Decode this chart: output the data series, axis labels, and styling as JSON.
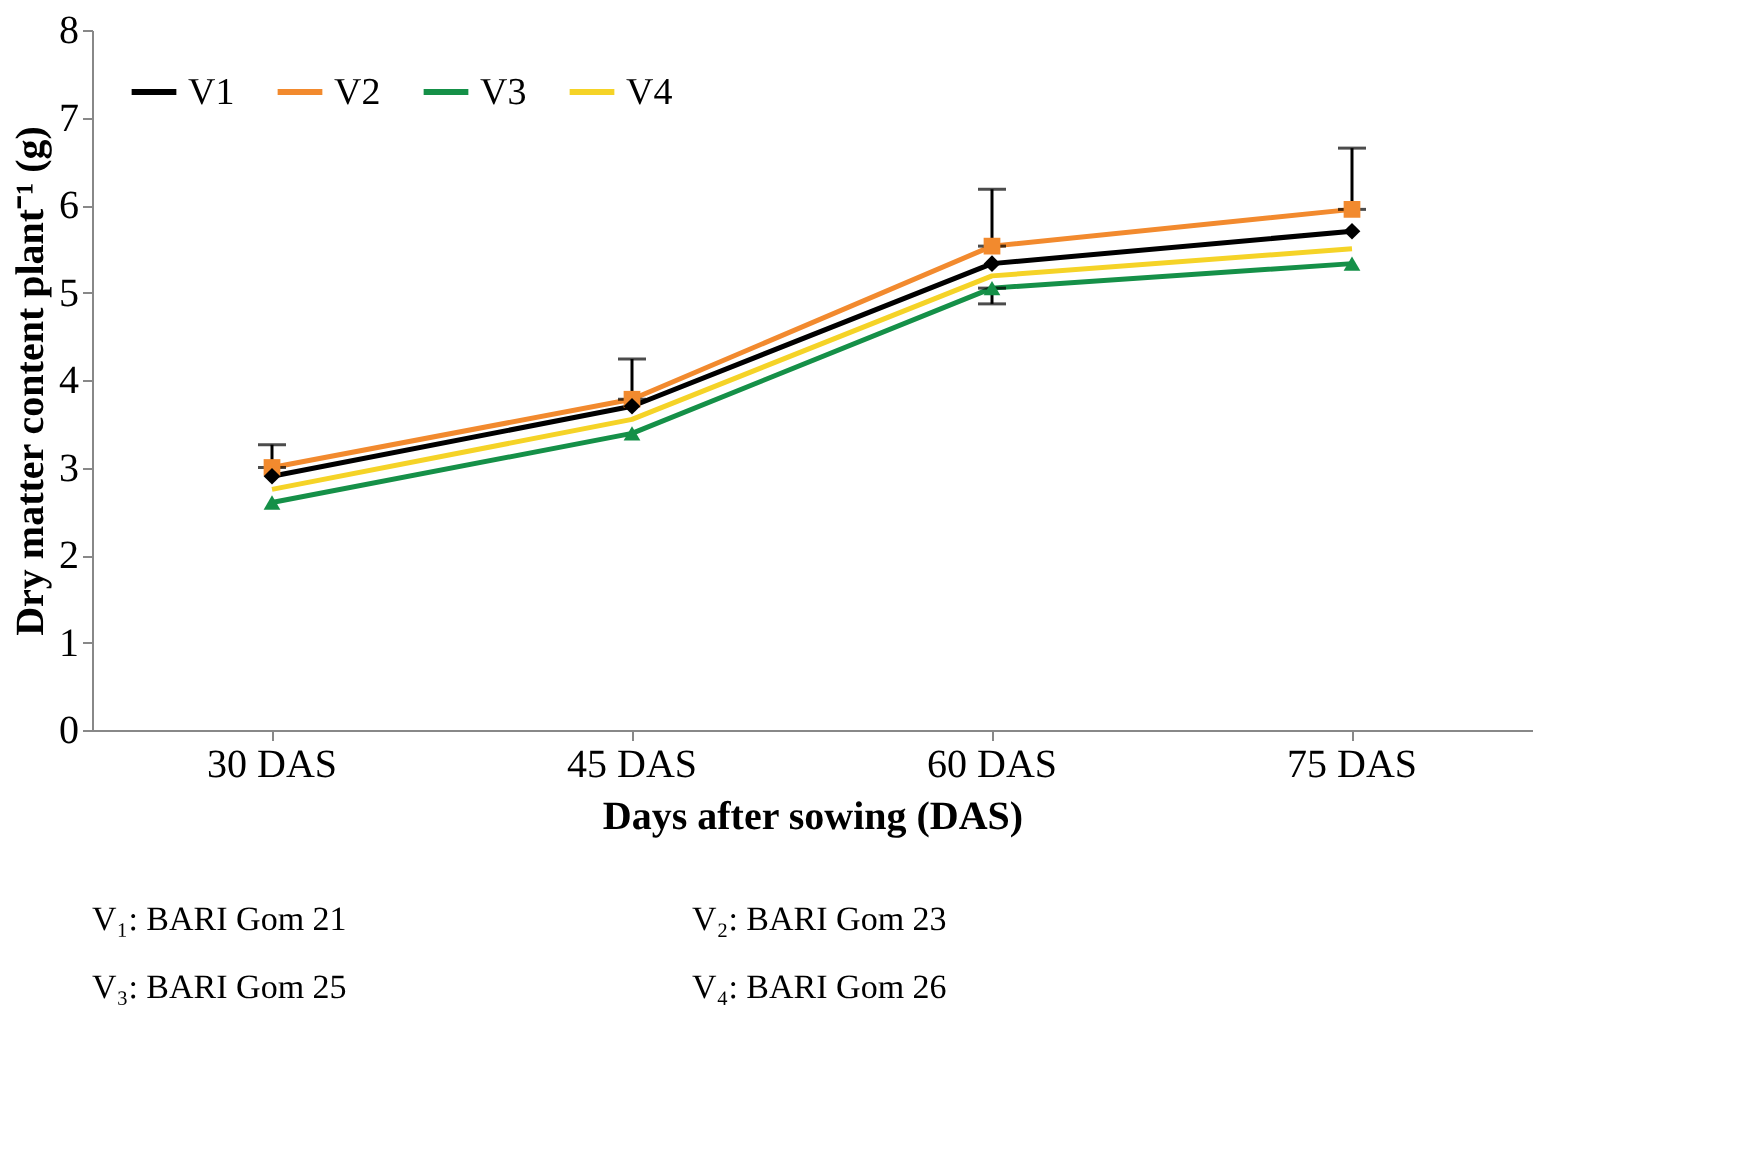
{
  "chart_data": {
    "type": "line",
    "xlabel": "Days after  sowing (DAS)",
    "ylabel": "Dry matter content plant⁻¹ (g)",
    "categories": [
      "30 DAS",
      "45 DAS",
      "60 DAS",
      "75 DAS"
    ],
    "series": [
      {
        "name": "V1",
        "color": "#000000",
        "marker": "diamond",
        "values": [
          2.9,
          3.7,
          5.33,
          5.7
        ]
      },
      {
        "name": "V2",
        "color": "#f28a2e",
        "marker": "square",
        "values": [
          3.0,
          3.78,
          5.53,
          5.95
        ],
        "errors": [
          [
            3.0,
            3.26
          ],
          [
            3.78,
            4.24
          ],
          [
            5.53,
            6.18
          ],
          [
            5.95,
            6.65
          ]
        ]
      },
      {
        "name": "V3",
        "color": "#159048",
        "marker": "triangle",
        "values": [
          2.6,
          3.39,
          5.05,
          5.33
        ],
        "errors": [
          null,
          null,
          [
            4.87,
            5.05
          ],
          null
        ]
      },
      {
        "name": "V4",
        "color": "#f5d327",
        "marker": "none",
        "values": [
          2.75,
          3.55,
          5.19,
          5.5
        ]
      }
    ],
    "ylim": [
      0,
      8
    ],
    "yticks": [
      0,
      1,
      2,
      3,
      4,
      5,
      6,
      7,
      8
    ],
    "grid": false,
    "legend": "top left",
    "annotations": [
      "V₁: BARI Gom 21",
      "V₂: BARI Gom 23",
      "V₃: BARI Gom 25",
      "V₄: BARI Gom 26"
    ]
  }
}
